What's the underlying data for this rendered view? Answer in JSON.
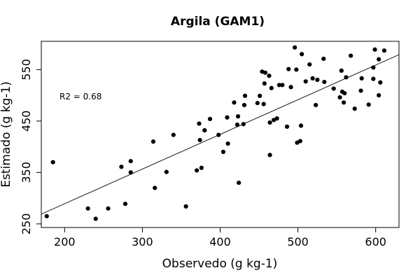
{
  "chart_data": {
    "type": "scatter",
    "title": "Argila (GAM1)",
    "xlabel": "Observedo (g kg-1)",
    "ylabel": "Estimado (g kg-1)",
    "xlim": [
      170,
      630
    ],
    "ylim": [
      243,
      605
    ],
    "xticks": [
      200,
      300,
      400,
      500,
      600
    ],
    "yticks": [
      250,
      350,
      450,
      550
    ],
    "annotation": "R2 = 0.68",
    "fit_line": {
      "x": [
        170,
        630
      ],
      "y": [
        269,
        579
      ]
    },
    "grid": false,
    "legend": "none",
    "marker_color": "#000000",
    "points": [
      {
        "x": 177,
        "y": 265
      },
      {
        "x": 185,
        "y": 370
      },
      {
        "x": 230,
        "y": 280
      },
      {
        "x": 240,
        "y": 260
      },
      {
        "x": 256,
        "y": 280
      },
      {
        "x": 273,
        "y": 361
      },
      {
        "x": 278,
        "y": 289
      },
      {
        "x": 285,
        "y": 350
      },
      {
        "x": 285,
        "y": 372
      },
      {
        "x": 314,
        "y": 410
      },
      {
        "x": 316,
        "y": 320
      },
      {
        "x": 331,
        "y": 351
      },
      {
        "x": 340,
        "y": 423
      },
      {
        "x": 356,
        "y": 284
      },
      {
        "x": 370,
        "y": 354
      },
      {
        "x": 373,
        "y": 445
      },
      {
        "x": 374,
        "y": 413
      },
      {
        "x": 376,
        "y": 359
      },
      {
        "x": 380,
        "y": 432
      },
      {
        "x": 387,
        "y": 454
      },
      {
        "x": 398,
        "y": 423
      },
      {
        "x": 404,
        "y": 390
      },
      {
        "x": 409,
        "y": 457
      },
      {
        "x": 410,
        "y": 406
      },
      {
        "x": 418,
        "y": 486
      },
      {
        "x": 422,
        "y": 443
      },
      {
        "x": 423,
        "y": 459
      },
      {
        "x": 424,
        "y": 330
      },
      {
        "x": 430,
        "y": 444
      },
      {
        "x": 431,
        "y": 481
      },
      {
        "x": 432,
        "y": 499
      },
      {
        "x": 448,
        "y": 485
      },
      {
        "x": 451,
        "y": 499
      },
      {
        "x": 454,
        "y": 546
      },
      {
        "x": 456,
        "y": 483
      },
      {
        "x": 457,
        "y": 523
      },
      {
        "x": 458,
        "y": 544
      },
      {
        "x": 463,
        "y": 538
      },
      {
        "x": 464,
        "y": 384
      },
      {
        "x": 464,
        "y": 447
      },
      {
        "x": 466,
        "y": 514
      },
      {
        "x": 469,
        "y": 452
      },
      {
        "x": 473,
        "y": 455
      },
      {
        "x": 476,
        "y": 520
      },
      {
        "x": 480,
        "y": 520
      },
      {
        "x": 486,
        "y": 439
      },
      {
        "x": 488,
        "y": 551
      },
      {
        "x": 491,
        "y": 516
      },
      {
        "x": 496,
        "y": 593
      },
      {
        "x": 498,
        "y": 550
      },
      {
        "x": 499,
        "y": 408
      },
      {
        "x": 503,
        "y": 411
      },
      {
        "x": 504,
        "y": 441
      },
      {
        "x": 505,
        "y": 580
      },
      {
        "x": 510,
        "y": 527
      },
      {
        "x": 515,
        "y": 560
      },
      {
        "x": 519,
        "y": 533
      },
      {
        "x": 523,
        "y": 481
      },
      {
        "x": 525,
        "y": 530
      },
      {
        "x": 533,
        "y": 571
      },
      {
        "x": 534,
        "y": 526
      },
      {
        "x": 546,
        "y": 513
      },
      {
        "x": 554,
        "y": 496
      },
      {
        "x": 556,
        "y": 548
      },
      {
        "x": 557,
        "y": 507
      },
      {
        "x": 559,
        "y": 486
      },
      {
        "x": 560,
        "y": 504
      },
      {
        "x": 562,
        "y": 535
      },
      {
        "x": 568,
        "y": 577
      },
      {
        "x": 573,
        "y": 474
      },
      {
        "x": 581,
        "y": 509
      },
      {
        "x": 582,
        "y": 533
      },
      {
        "x": 591,
        "y": 482
      },
      {
        "x": 597,
        "y": 532
      },
      {
        "x": 597,
        "y": 554
      },
      {
        "x": 599,
        "y": 589
      },
      {
        "x": 604,
        "y": 500
      },
      {
        "x": 604,
        "y": 570
      },
      {
        "x": 606,
        "y": 525
      },
      {
        "x": 611,
        "y": 587
      }
    ]
  }
}
